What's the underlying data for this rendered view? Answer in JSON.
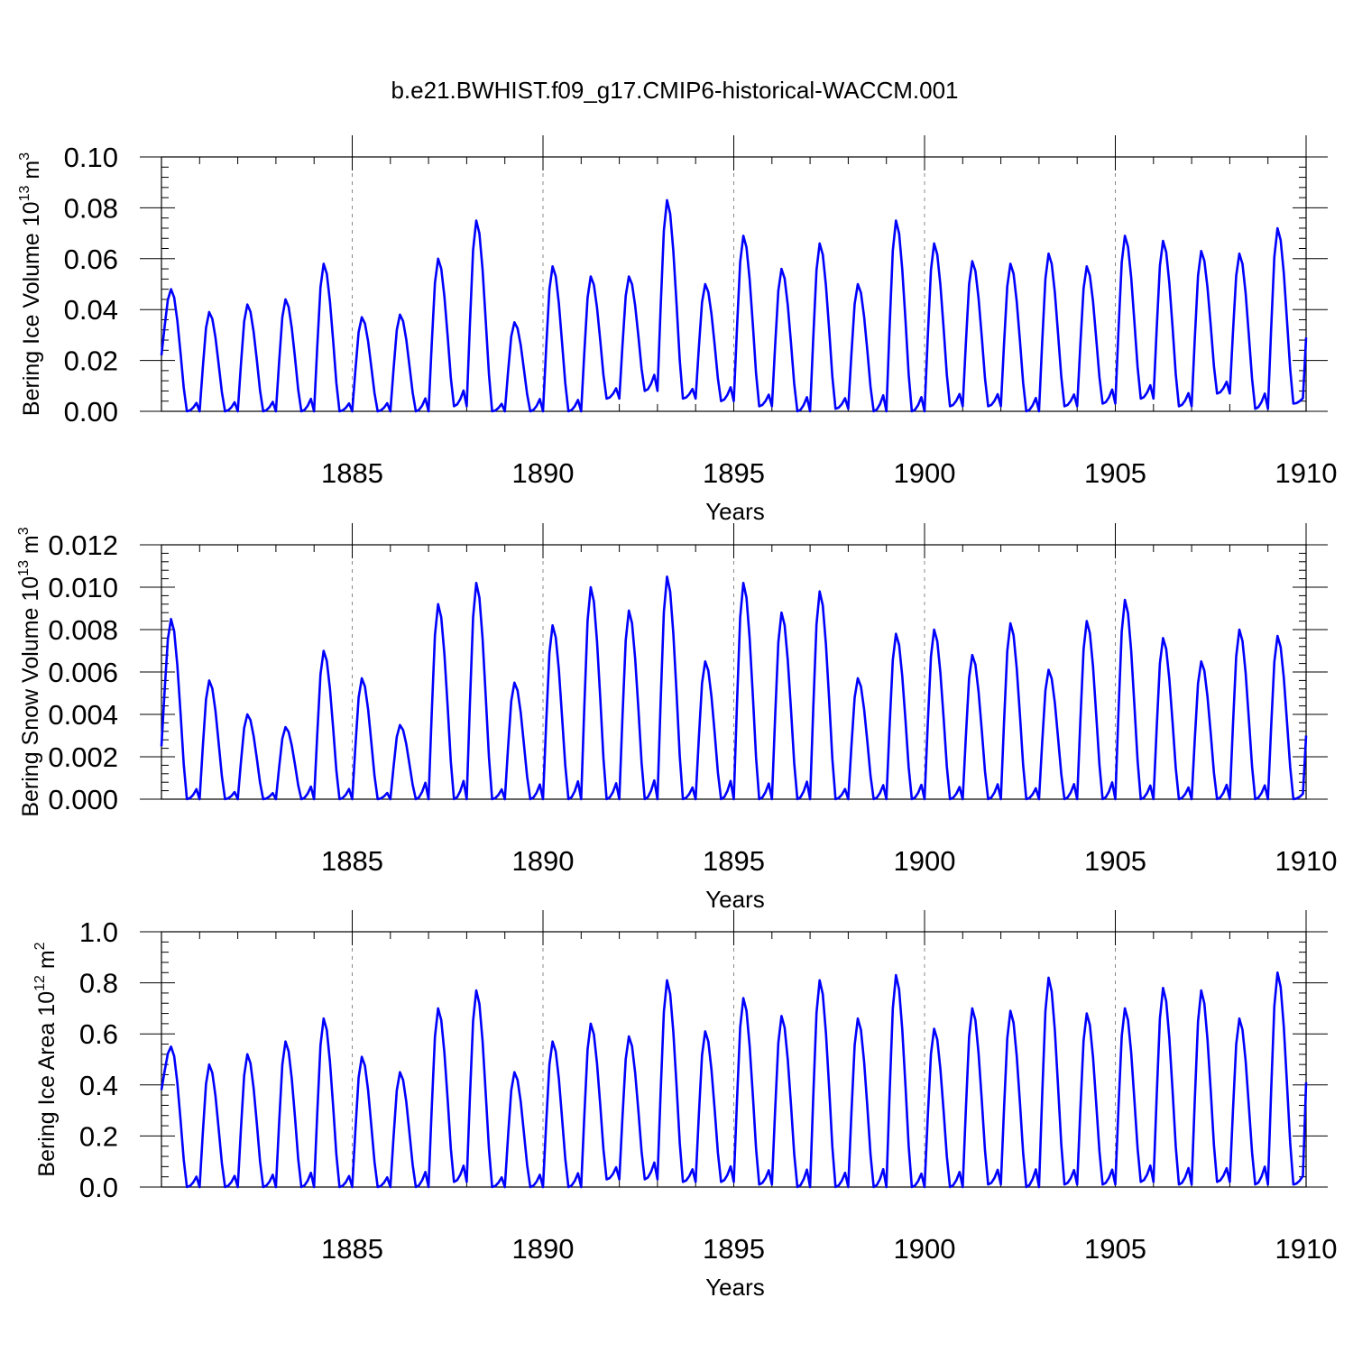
{
  "figure": {
    "title": "b.e21.BWHIST.f09_g17.CMIP6-historical-WACCM.001"
  },
  "chart_data": [
    {
      "type": "line",
      "ylabel_main": "Bering Ice Volume 10",
      "ylabel_exp": "13",
      "ylabel_unit": " m",
      "ylabel_unit_exp": "3",
      "xlabel": "Years",
      "xlim": [
        1880.0,
        1910.0
      ],
      "ylim": [
        0.0,
        0.1
      ],
      "ytick_values": [
        0.0,
        0.02,
        0.04,
        0.06,
        0.08,
        0.1
      ],
      "ytick_labels": [
        "0.00",
        "0.02",
        "0.04",
        "0.06",
        "0.08",
        "0.10"
      ],
      "xtick_values": [
        1885,
        1890,
        1895,
        1900,
        1905,
        1910
      ],
      "xtick_labels": [
        "1885",
        "1890",
        "1895",
        "1900",
        "1905",
        "1910"
      ],
      "grid": "vertical dashed at major x ticks",
      "line_color": "#0000ff",
      "peaks": [
        0.048,
        0.039,
        0.042,
        0.044,
        0.058,
        0.037,
        0.038,
        0.06,
        0.075,
        0.035,
        0.057,
        0.053,
        0.053,
        0.083,
        0.05,
        0.069,
        0.056,
        0.066,
        0.05,
        0.075,
        0.066,
        0.059,
        0.058,
        0.062,
        0.057,
        0.069,
        0.067,
        0.063,
        0.062,
        0.072
      ],
      "troughs": [
        0.0,
        0.0,
        0.0,
        0.0,
        0.0,
        0.0,
        0.0,
        0.002,
        0.0,
        0.0,
        0.0,
        0.005,
        0.008,
        0.005,
        0.004,
        0.002,
        0.0,
        0.001,
        0.0,
        0.0,
        0.002,
        0.002,
        0.0,
        0.002,
        0.003,
        0.005,
        0.002,
        0.007,
        0.001,
        0.003
      ],
      "start_value": 0.022,
      "end_value": 0.029
    },
    {
      "type": "line",
      "ylabel_main": "Bering Snow Volume 10",
      "ylabel_exp": "13",
      "ylabel_unit": " m",
      "ylabel_unit_exp": "3",
      "xlabel": "Years",
      "xlim": [
        1880.0,
        1910.0
      ],
      "ylim": [
        0.0,
        0.012
      ],
      "ytick_values": [
        0.0,
        0.002,
        0.004,
        0.006,
        0.008,
        0.01,
        0.012
      ],
      "ytick_labels": [
        "0.000",
        "0.002",
        "0.004",
        "0.006",
        "0.008",
        "0.010",
        "0.012"
      ],
      "xtick_values": [
        1885,
        1890,
        1895,
        1900,
        1905,
        1910
      ],
      "xtick_labels": [
        "1885",
        "1890",
        "1895",
        "1900",
        "1905",
        "1910"
      ],
      "grid": "vertical dashed at major x ticks",
      "line_color": "#0000ff",
      "peaks": [
        0.0085,
        0.0056,
        0.004,
        0.0034,
        0.007,
        0.0057,
        0.0035,
        0.0092,
        0.0102,
        0.0055,
        0.0082,
        0.01,
        0.0089,
        0.0105,
        0.0065,
        0.0102,
        0.0088,
        0.0098,
        0.0057,
        0.0078,
        0.008,
        0.0068,
        0.0083,
        0.0061,
        0.0084,
        0.0094,
        0.0076,
        0.0065,
        0.008,
        0.0077
      ],
      "troughs": [
        0.0,
        0.0,
        0.0,
        0.0,
        0.0,
        0.0,
        0.0,
        0.0,
        0.0,
        0.0,
        0.0,
        0.0,
        0.0,
        0.0,
        0.0,
        0.0,
        0.0,
        0.0,
        0.0,
        0.0,
        0.0,
        0.0,
        0.0,
        0.0,
        0.0,
        0.0,
        0.0,
        0.0,
        0.0,
        0.0
      ],
      "start_value": 0.0025,
      "end_value": 0.003
    },
    {
      "type": "line",
      "ylabel_main": "Bering Ice Area 10",
      "ylabel_exp": "12",
      "ylabel_unit": " m",
      "ylabel_unit_exp": "2",
      "xlabel": "Years",
      "xlim": [
        1880.0,
        1910.0
      ],
      "ylim": [
        0.0,
        1.0
      ],
      "ytick_values": [
        0.0,
        0.2,
        0.4,
        0.6,
        0.8,
        1.0
      ],
      "ytick_labels": [
        "0.0",
        "0.2",
        "0.4",
        "0.6",
        "0.8",
        "1.0"
      ],
      "xtick_values": [
        1885,
        1890,
        1895,
        1900,
        1905,
        1910
      ],
      "xtick_labels": [
        "1885",
        "1890",
        "1895",
        "1900",
        "1905",
        "1910"
      ],
      "grid": "vertical dashed at major x ticks",
      "line_color": "#0000ff",
      "peaks": [
        0.55,
        0.48,
        0.52,
        0.57,
        0.66,
        0.51,
        0.45,
        0.7,
        0.77,
        0.45,
        0.57,
        0.64,
        0.59,
        0.81,
        0.61,
        0.74,
        0.67,
        0.81,
        0.66,
        0.83,
        0.62,
        0.7,
        0.69,
        0.82,
        0.68,
        0.7,
        0.78,
        0.77,
        0.66,
        0.84
      ],
      "troughs": [
        0.0,
        0.0,
        0.0,
        0.0,
        0.0,
        0.0,
        0.0,
        0.02,
        0.0,
        0.0,
        0.0,
        0.03,
        0.03,
        0.02,
        0.02,
        0.01,
        0.0,
        0.0,
        0.0,
        0.0,
        0.0,
        0.01,
        0.0,
        0.01,
        0.01,
        0.02,
        0.01,
        0.02,
        0.01,
        0.01
      ],
      "start_value": 0.38,
      "end_value": 0.41
    }
  ]
}
